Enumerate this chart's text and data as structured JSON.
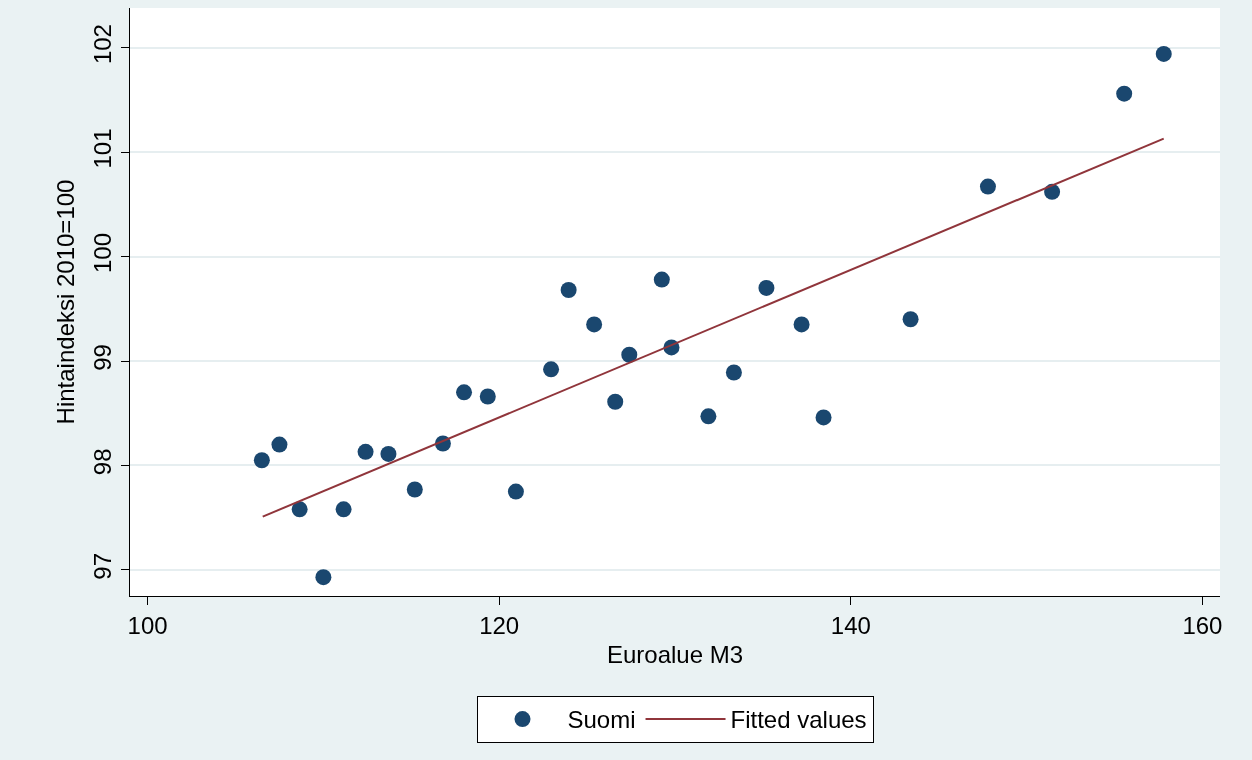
{
  "chart_data": {
    "type": "scatter",
    "xlabel": "Euroalue M3",
    "ylabel": "Hintaindeksi 2010=100",
    "xlim": [
      99,
      161
    ],
    "xticks": [
      100,
      120,
      140,
      160
    ],
    "ylim": [
      96.75,
      102.38
    ],
    "yticks": [
      97,
      98,
      99,
      100,
      101,
      102
    ],
    "grid": "y",
    "legend": "bottom",
    "marker": "circle",
    "series": [
      {
        "name": "Suomi",
        "color": "#1a476f",
        "x": [
          106.5,
          107.5,
          108.65,
          110.0,
          111.15,
          112.4,
          113.7,
          115.2,
          116.8,
          118.0,
          119.35,
          120.95,
          122.95,
          123.95,
          125.4,
          126.6,
          127.4,
          129.25,
          129.8,
          131.9,
          133.35,
          135.2,
          137.2,
          138.45,
          143.4,
          147.8,
          151.45,
          155.55,
          157.8
        ],
        "values": [
          98.05,
          98.2,
          97.58,
          96.93,
          97.58,
          98.13,
          98.11,
          97.77,
          98.21,
          98.7,
          98.66,
          97.75,
          98.92,
          99.68,
          99.35,
          98.61,
          99.06,
          99.78,
          99.13,
          98.47,
          98.89,
          99.7,
          99.35,
          98.46,
          99.4,
          100.67,
          100.62,
          101.56,
          101.94
        ]
      },
      {
        "name": "Fitted values",
        "type": "line",
        "color": "#90353b",
        "line_style": "solid",
        "marker": "none",
        "x": [
          106.55,
          157.8
        ],
        "values": [
          97.51,
          101.13
        ]
      }
    ]
  }
}
